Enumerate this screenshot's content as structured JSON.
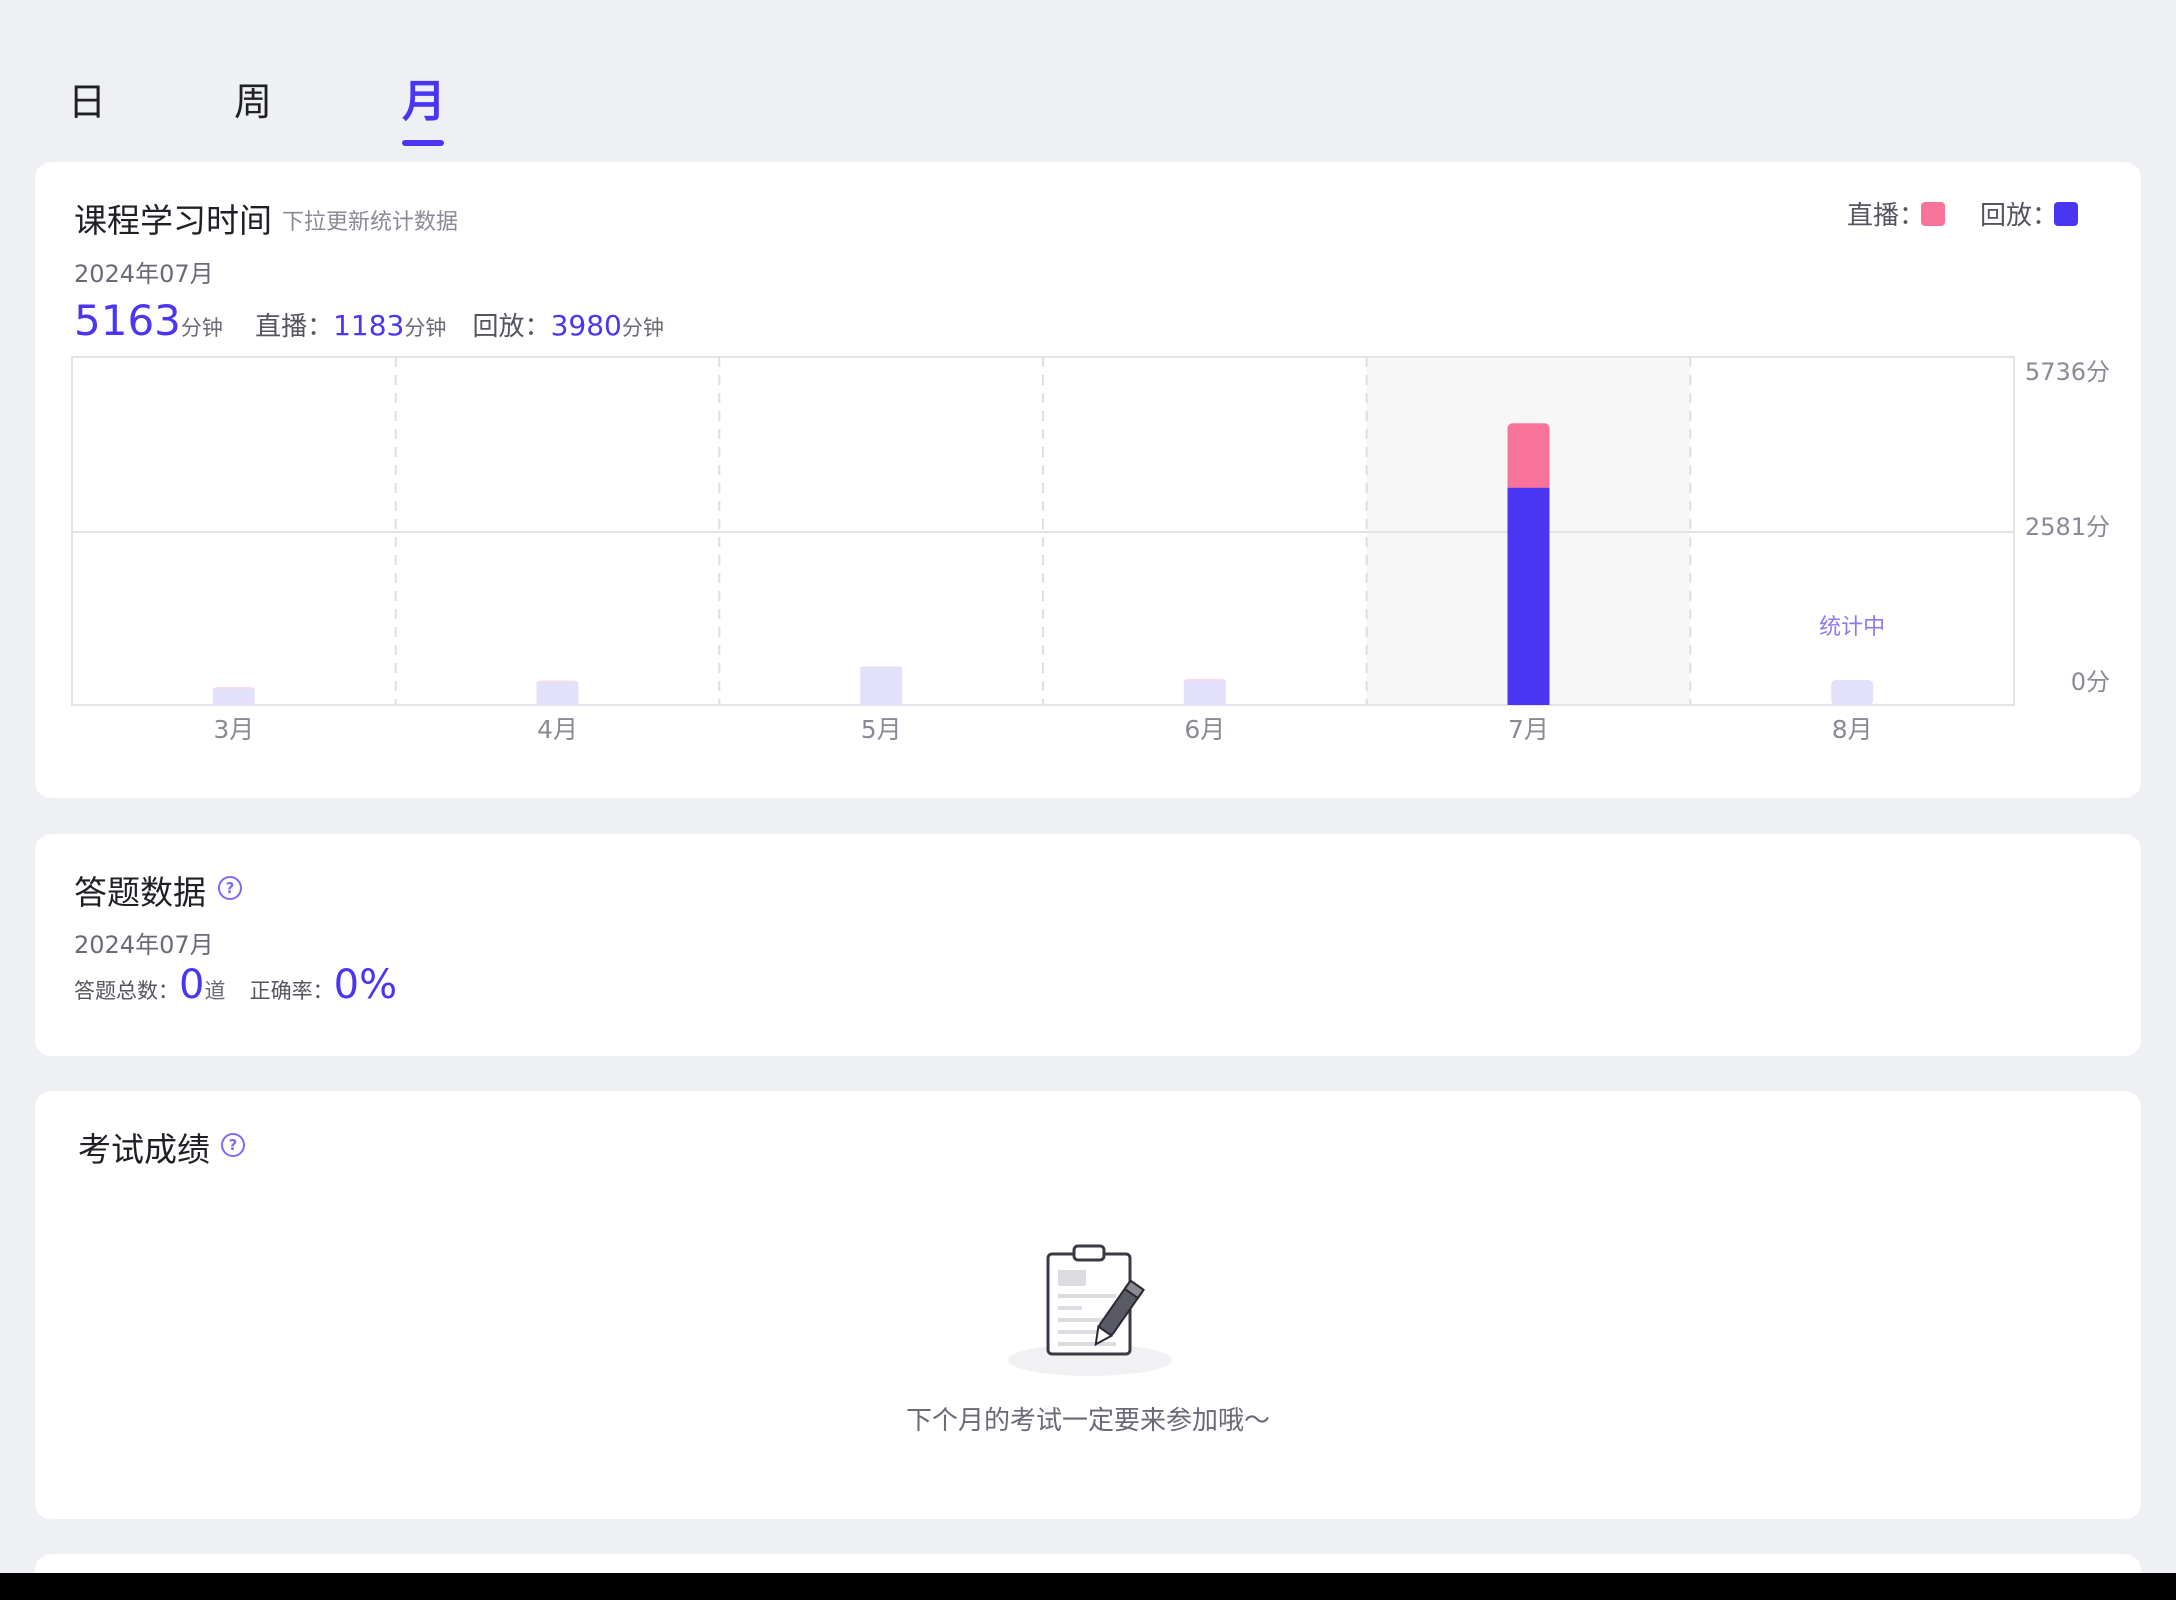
{
  "tabs": [
    {
      "label": "日",
      "active": false
    },
    {
      "label": "周",
      "active": false
    },
    {
      "label": "月",
      "active": true
    }
  ],
  "study": {
    "title": "课程学习时间",
    "subtitle": "下拉更新统计数据",
    "period": "2024年07月",
    "total": "5163",
    "total_unit": "分钟",
    "live_label": "直播：",
    "live_value": "1183",
    "live_unit": "分钟",
    "replay_label": "回放：",
    "replay_value": "3980",
    "replay_unit": "分钟",
    "legend": [
      {
        "label": "直播：",
        "color": "#f7739a"
      },
      {
        "label": "回放：",
        "color": "#4a35f2"
      }
    ]
  },
  "chart_data": {
    "type": "bar",
    "stacked": true,
    "categories": [
      "3月",
      "4月",
      "5月",
      "6月",
      "7月",
      "8月"
    ],
    "series": [
      {
        "name": "回放",
        "color": "#4a35f2",
        "values": [
          300,
          420,
          700,
          450,
          3980,
          460
        ]
      },
      {
        "name": "直播",
        "color": "#f7739a",
        "values": [
          30,
          30,
          10,
          30,
          1183,
          0
        ]
      }
    ],
    "y_ticks": [
      "5736分",
      "2581分",
      "0分"
    ],
    "highlight_category": "7月",
    "annotations": [
      {
        "category": "8月",
        "text": "统计中"
      }
    ],
    "ylim": [
      0,
      5736
    ]
  },
  "answers": {
    "title": "答题数据",
    "help_glyph": "?",
    "period": "2024年07月",
    "total_label": "答题总数：",
    "total_value": "0",
    "total_unit": "道",
    "accuracy_label": "正确率：",
    "accuracy_value": "0%"
  },
  "exam": {
    "title": "考试成绩",
    "help_glyph": "?",
    "empty_text": "下个月的考试一定要来参加哦～"
  }
}
